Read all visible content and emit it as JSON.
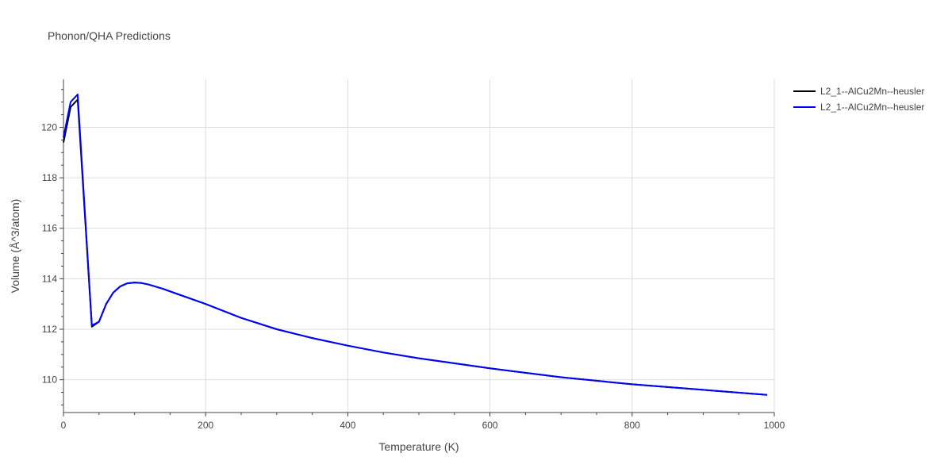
{
  "chart_data": {
    "type": "line",
    "title": "Phonon/QHA Predictions",
    "xlabel": "Temperature (K)",
    "ylabel": "Volume (Å^3/atom)",
    "xlim": [
      0,
      1000
    ],
    "ylim": [
      108.7,
      121.9
    ],
    "xticks": [
      0,
      200,
      400,
      600,
      800,
      1000
    ],
    "yticks": [
      110,
      112,
      114,
      116,
      118,
      120
    ],
    "grid": true,
    "legend_position": "top-right",
    "series": [
      {
        "name": "L2_1--AlCu2Mn--heusler",
        "color": "#000000",
        "x": [
          0,
          10,
          20,
          40,
          50,
          60,
          70,
          80,
          90,
          100,
          110,
          120,
          140,
          160,
          180,
          200,
          250,
          300,
          350,
          400,
          450,
          500,
          600,
          700,
          800,
          900,
          990
        ],
        "y": [
          119.4,
          120.8,
          121.1,
          112.1,
          112.3,
          113.0,
          113.45,
          113.7,
          113.82,
          113.85,
          113.83,
          113.77,
          113.6,
          113.4,
          113.2,
          113.0,
          112.45,
          112.0,
          111.65,
          111.35,
          111.08,
          110.85,
          110.45,
          110.1,
          109.82,
          109.6,
          109.4
        ]
      },
      {
        "name": "L2_1--AlCu2Mn--heusler",
        "color": "#0000ff",
        "x": [
          0,
          10,
          20,
          40,
          50,
          60,
          70,
          80,
          90,
          100,
          110,
          120,
          140,
          160,
          180,
          200,
          250,
          300,
          350,
          400,
          450,
          500,
          600,
          700,
          800,
          900,
          990
        ],
        "y": [
          119.6,
          121.0,
          121.3,
          112.15,
          112.3,
          113.0,
          113.45,
          113.7,
          113.82,
          113.85,
          113.83,
          113.77,
          113.6,
          113.4,
          113.2,
          113.0,
          112.45,
          112.0,
          111.65,
          111.35,
          111.08,
          110.85,
          110.45,
          110.1,
          109.82,
          109.6,
          109.4
        ]
      }
    ]
  }
}
